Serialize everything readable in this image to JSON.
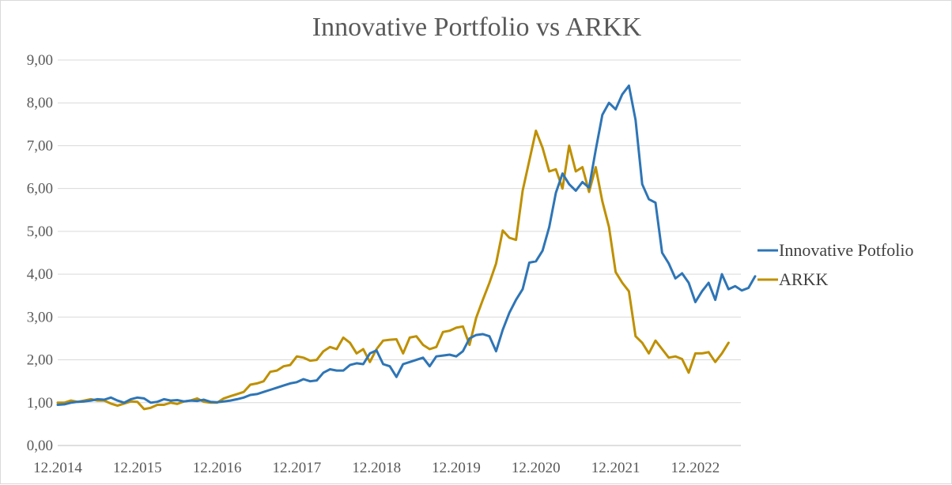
{
  "chart_data": {
    "type": "line",
    "title": "Innovative  Portfolio  vs ARKK",
    "xlabel": "",
    "ylabel": "",
    "grid": true,
    "legend_position": "right",
    "ylim": [
      0,
      9
    ],
    "yticks": [
      "0,00",
      "1,00",
      "2,00",
      "3,00",
      "4,00",
      "5,00",
      "6,00",
      "7,00",
      "8,00",
      "9,00"
    ],
    "xtick_labels": [
      "12.2014",
      "12.2015",
      "12.2016",
      "12.2017",
      "12.2018",
      "12.2019",
      "12.2020",
      "12.2021",
      "12.2022"
    ],
    "x_start_label": "12.2014",
    "x_step": "month",
    "series": [
      {
        "name": "Innovative Potfolio",
        "color": "#2E75B6",
        "values": [
          0.95,
          0.96,
          1.0,
          1.02,
          1.03,
          1.05,
          1.08,
          1.07,
          1.12,
          1.05,
          1.0,
          1.08,
          1.12,
          1.1,
          1.0,
          1.02,
          1.08,
          1.05,
          1.06,
          1.03,
          1.05,
          1.04,
          1.07,
          1.02,
          1.01,
          1.03,
          1.05,
          1.08,
          1.12,
          1.18,
          1.2,
          1.25,
          1.3,
          1.35,
          1.4,
          1.45,
          1.48,
          1.55,
          1.5,
          1.52,
          1.7,
          1.78,
          1.75,
          1.75,
          1.88,
          1.92,
          1.9,
          2.15,
          2.22,
          1.9,
          1.85,
          1.6,
          1.9,
          1.95,
          2.0,
          2.05,
          1.85,
          2.08,
          2.1,
          2.12,
          2.08,
          2.2,
          2.5,
          2.58,
          2.6,
          2.55,
          2.2,
          2.7,
          3.1,
          3.4,
          3.65,
          4.27,
          4.3,
          4.55,
          5.1,
          5.9,
          6.35,
          6.1,
          5.95,
          6.15,
          6.02,
          6.9,
          7.72,
          8.0,
          7.85,
          8.2,
          8.4,
          7.6,
          6.1,
          5.75,
          5.67,
          4.5,
          4.25,
          3.9,
          4.02,
          3.8,
          3.35,
          3.6,
          3.8,
          3.4,
          4.0,
          3.65,
          3.72,
          3.62,
          3.68,
          3.95
        ]
      },
      {
        "name": "ARKK",
        "color": "#BF9000",
        "values": [
          1.0,
          1.0,
          1.05,
          1.02,
          1.05,
          1.08,
          1.05,
          1.05,
          0.98,
          0.93,
          0.98,
          1.03,
          1.02,
          0.85,
          0.88,
          0.95,
          0.95,
          1.0,
          0.97,
          1.03,
          1.05,
          1.1,
          1.02,
          1.0,
          1.0,
          1.1,
          1.15,
          1.2,
          1.25,
          1.42,
          1.45,
          1.5,
          1.72,
          1.75,
          1.85,
          1.88,
          2.08,
          2.05,
          1.98,
          2.0,
          2.2,
          2.3,
          2.25,
          2.52,
          2.4,
          2.15,
          2.25,
          1.95,
          2.25,
          2.45,
          2.47,
          2.48,
          2.15,
          2.52,
          2.55,
          2.35,
          2.25,
          2.3,
          2.65,
          2.68,
          2.75,
          2.78,
          2.35,
          2.98,
          3.4,
          3.8,
          4.25,
          5.02,
          4.85,
          4.8,
          5.95,
          6.65,
          7.35,
          6.95,
          6.4,
          6.45,
          6.0,
          7.0,
          6.4,
          6.5,
          5.92,
          6.5,
          5.7,
          5.1,
          4.05,
          3.8,
          3.6,
          2.55,
          2.4,
          2.15,
          2.45,
          2.25,
          2.05,
          2.08,
          2.02,
          1.7,
          2.15,
          2.15,
          2.18,
          1.95,
          2.15,
          2.4
        ]
      }
    ]
  }
}
